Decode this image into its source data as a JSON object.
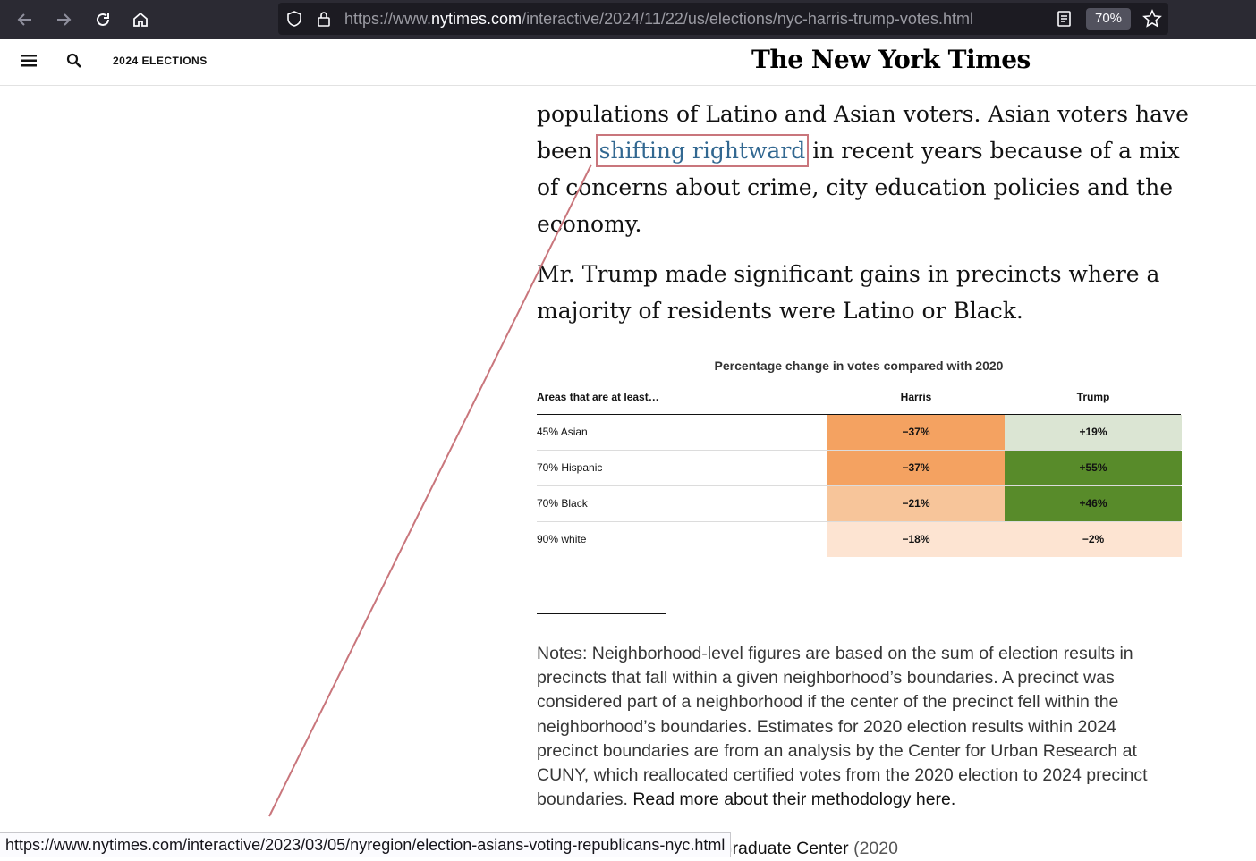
{
  "browser": {
    "url_prefix": "https://www.",
    "url_host": "nytimes.com",
    "url_path": "/interactive/2024/11/22/us/elections/nyc-harris-trump-votes.html",
    "zoom": "70%",
    "status_url": "https://www.nytimes.com/interactive/2023/03/05/nyregion/election-asians-voting-republicans-nyc.html"
  },
  "header": {
    "section": "2024 ELECTIONS",
    "masthead": "The New York Times"
  },
  "article": {
    "para1_before": "populations of Latino and Asian voters. Asian voters have been ",
    "para1_link": "shifting rightward",
    "para1_after": " in recent years because of a mix of concerns about crime, city education policies and the economy.",
    "para2": "Mr. Trump made significant gains in precincts where a majority of residents were Latino or Black."
  },
  "table": {
    "title": "Percentage change in votes compared with 2020",
    "col_area": "Areas that are at least…",
    "col_harris": "Harris",
    "col_trump": "Trump",
    "rows": [
      {
        "area": "45% Asian",
        "harris": "−37%",
        "trump": "+19%",
        "harris_color": "#f4a261",
        "trump_color": "#dbe5d3"
      },
      {
        "area": "70% Hispanic",
        "harris": "−37%",
        "trump": "+55%",
        "harris_color": "#f4a261",
        "trump_color": "#588b2a"
      },
      {
        "area": "70% Black",
        "harris": "−21%",
        "trump": "+46%",
        "harris_color": "#f7c59a",
        "trump_color": "#588b2a"
      },
      {
        "area": "90% white",
        "harris": "−18%",
        "trump": "−2%",
        "harris_color": "#fde4d2",
        "trump_color": "#fde4d2"
      }
    ]
  },
  "notes": {
    "text": "Notes: Neighborhood-level figures are based on the sum of election results in precincts that fall within a given neighborhood’s boundaries. A precinct was considered part of a neighborhood if the center of the precinct fell within the neighborhood’s boundaries. Estimates for 2020 election results within 2024 precinct boundaries are from an analysis by the Center for Urban Research at CUNY, which reallocated certified votes from the 2020 election to 2024 precinct boundaries. ",
    "link": "Read more about their methodology here.",
    "source_visible": "Research at the CUNY Graduate Center",
    "source_paren": " (2020"
  },
  "colors": {
    "chrome_bg": "#2b2a33",
    "link_blue": "#326891",
    "highlight_box": "#c9767c"
  }
}
